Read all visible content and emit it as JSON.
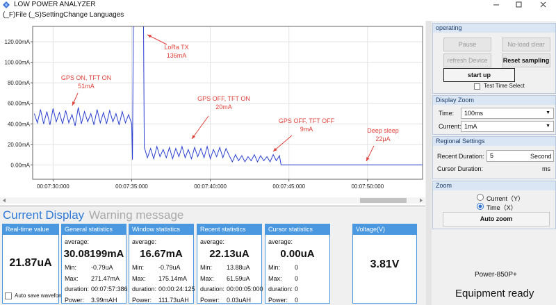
{
  "window": {
    "title": "LOW POWER ANALYZER"
  },
  "menu": [
    "(_F)File",
    "(_S)Setting",
    "Change Languages"
  ],
  "chart_data": {
    "type": "line",
    "color": "#2b3fd0",
    "grid": true,
    "xlim": [
      448.7,
      473.5
    ],
    "ylim": [
      -14,
      135
    ],
    "xticks": [
      {
        "value": 450,
        "label": "00:07:30:000"
      },
      {
        "value": 455,
        "label": "00:07:35:000"
      },
      {
        "value": 460,
        "label": "00:07:40:000"
      },
      {
        "value": 465,
        "label": "00:07:45:000"
      },
      {
        "value": 470,
        "label": "00:07:50:000"
      }
    ],
    "yticks": [
      {
        "value": 0,
        "label": "0.00mA"
      },
      {
        "value": 20,
        "label": "20.00mA"
      },
      {
        "value": 40,
        "label": "40.00mA"
      },
      {
        "value": 60,
        "label": "60.00mA"
      },
      {
        "value": 80,
        "label": "80.00mA"
      },
      {
        "value": 100,
        "label": "100.00mA"
      },
      {
        "value": 120,
        "label": "120.00mA"
      }
    ],
    "x": [
      448.8,
      449.0,
      449.2,
      449.4,
      449.6,
      449.8,
      450.0,
      450.2,
      450.4,
      450.6,
      450.8,
      451.0,
      451.2,
      451.4,
      451.6,
      451.8,
      452.0,
      452.2,
      452.4,
      452.6,
      452.8,
      453.0,
      453.2,
      453.4,
      453.6,
      453.8,
      454.0,
      454.2,
      454.4,
      454.6,
      454.8,
      455.0,
      455.05,
      455.1,
      455.75,
      455.8,
      456.0,
      456.2,
      456.4,
      456.6,
      456.8,
      457.0,
      457.2,
      457.4,
      457.6,
      457.8,
      458.0,
      458.2,
      458.4,
      458.6,
      458.8,
      459.0,
      459.2,
      459.4,
      459.6,
      459.8,
      460.0,
      460.2,
      460.4,
      460.6,
      460.8,
      461.0,
      461.2,
      461.4,
      461.6,
      461.8,
      462.0,
      462.2,
      462.4,
      462.6,
      462.8,
      463.0,
      463.2,
      463.4,
      463.6,
      463.8,
      464.0,
      464.2,
      464.4,
      464.5,
      473.5
    ],
    "values": [
      50,
      41,
      54,
      40,
      52,
      39,
      55,
      42,
      51,
      40,
      53,
      41,
      49,
      38,
      56,
      40,
      52,
      42,
      50,
      39,
      54,
      41,
      51,
      40,
      53,
      42,
      50,
      39,
      52,
      41,
      49,
      40,
      5,
      136,
      136,
      17,
      7,
      16,
      6,
      18,
      8,
      15,
      7,
      17,
      6,
      16,
      8,
      18,
      7,
      15,
      6,
      17,
      8,
      16,
      7,
      18,
      6,
      15,
      8,
      17,
      7,
      16,
      9,
      3,
      10,
      4,
      9,
      3,
      8,
      4,
      10,
      3,
      9,
      4,
      8,
      3,
      10,
      4,
      9,
      0.022,
      0.022
    ],
    "annotations": [
      {
        "lines": [
          "GPS ON, TFT ON",
          "51mA"
        ]
      },
      {
        "lines": [
          "LoRa TX",
          "136mA"
        ]
      },
      {
        "lines": [
          "GPS OFF, TFT ON",
          "20mA"
        ]
      },
      {
        "lines": [
          "GPS OFF, TFT OFF",
          "9mA"
        ]
      },
      {
        "lines": [
          "Deep sleep",
          "22μA"
        ]
      }
    ]
  },
  "tabs": [
    "Current Display",
    "Warning message"
  ],
  "realtime": {
    "title": "Real-time value",
    "value": "21.87uA",
    "checkbox": "Auto save waveform"
  },
  "stats": [
    {
      "title": "General statistics",
      "average_label": "average:",
      "average": "30.08199mA",
      "rows": [
        [
          "Min:",
          "-0.79uA"
        ],
        [
          "Max:",
          "271.47mA"
        ],
        [
          "duration:",
          "00:07:57:386"
        ],
        [
          "Power:",
          "3.99mAH"
        ]
      ]
    },
    {
      "title": "Window statistics",
      "average_label": "average:",
      "average": "16.67mA",
      "rows": [
        [
          "Min:",
          "-0.79uA"
        ],
        [
          "Max:",
          "175.14mA"
        ],
        [
          "duration:",
          "00:00:24:125"
        ],
        [
          "Power:",
          "111.73uAH"
        ]
      ]
    },
    {
      "title": "Recent statistics",
      "average_label": "average:",
      "average": "22.13uA",
      "rows": [
        [
          "Min:",
          "13.88uA"
        ],
        [
          "Max:",
          "61.59uA"
        ],
        [
          "duration:",
          "00:00:05:000"
        ],
        [
          "Power:",
          "0.03uAH"
        ]
      ]
    },
    {
      "title": "Cursor statistics",
      "average_label": "average:",
      "average": "0.00uA",
      "rows": [
        [
          "Min:",
          "0"
        ],
        [
          "Max:",
          "0"
        ],
        [
          "duration:",
          "0"
        ],
        [
          "Power:",
          "0"
        ]
      ]
    }
  ],
  "voltage": {
    "title": "Voltage(V)",
    "value": "3.81V"
  },
  "operating": {
    "title": "operating",
    "buttons": [
      "Pause",
      "No-load clear",
      "refresh Device",
      "Reset sampling",
      "start up"
    ],
    "checkbox": "Test Time Select"
  },
  "display_zoom": {
    "title": "Display Zoom",
    "time_label": "Time:",
    "time": "100ms",
    "current_label": "Current:",
    "current": "1mA"
  },
  "regional": {
    "title": "Regional Settings",
    "recent_label": "Recent Duration:",
    "recent": "5",
    "recent_unit": "Second",
    "cursor_label": "Cursor Duration:",
    "cursor_unit": "ms"
  },
  "zoom": {
    "title": "Zoom",
    "options": [
      "Current（Y）",
      "Time（X）"
    ],
    "button": "Auto zoom"
  },
  "device": "Power-850P+",
  "status": "Equipment ready"
}
